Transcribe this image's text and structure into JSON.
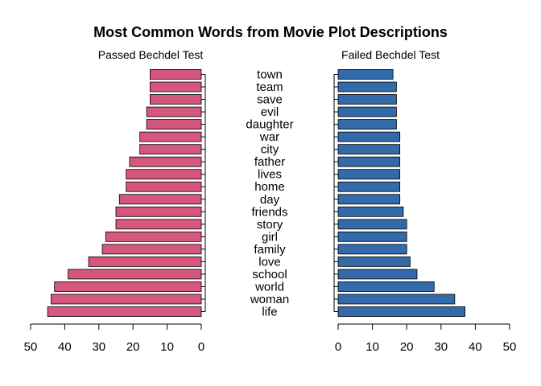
{
  "chart_data": {
    "type": "bar",
    "title": "Most Common Words from Movie Plot Descriptions",
    "categories": [
      "life",
      "woman",
      "world",
      "school",
      "love",
      "family",
      "girl",
      "story",
      "friends",
      "day",
      "home",
      "lives",
      "father",
      "city",
      "war",
      "daughter",
      "evil",
      "save",
      "team",
      "town"
    ],
    "series": [
      {
        "name": "Passed Bechdel Test",
        "color": "#D6577E",
        "values": [
          45,
          44,
          43,
          39,
          33,
          29,
          28,
          25,
          25,
          24,
          22,
          22,
          21,
          18,
          18,
          16,
          16,
          15,
          15,
          15
        ]
      },
      {
        "name": "Failed Bechdel Test",
        "color": "#336BAA",
        "values": [
          37,
          34,
          28,
          23,
          21,
          20,
          20,
          20,
          19,
          18,
          18,
          18,
          18,
          18,
          18,
          17,
          17,
          17,
          17,
          16
        ]
      }
    ],
    "xlim": [
      0,
      50
    ],
    "ticks": [
      0,
      10,
      20,
      30,
      40,
      50
    ],
    "xlabel": "",
    "ylabel": "",
    "grid": false,
    "legend": "none"
  }
}
